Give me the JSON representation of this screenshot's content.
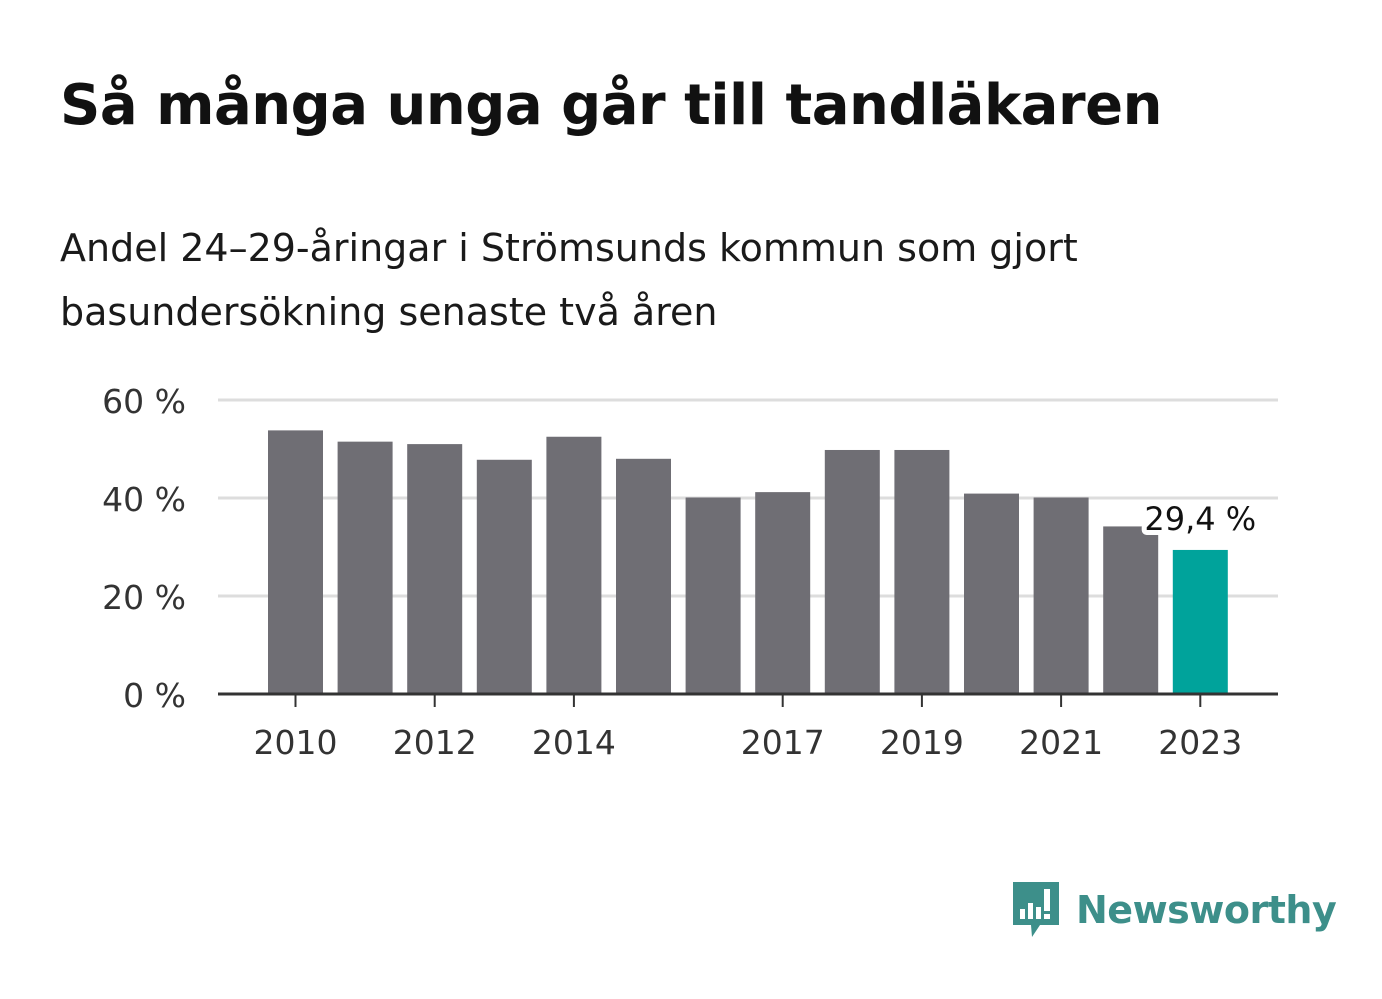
{
  "header": {
    "title": "Så många unga går till tandläkaren",
    "subtitle": "Andel 24–29-åringar i Strömsunds kommun som gjort basundersökning senaste två åren"
  },
  "colors": {
    "bar": "#6f6e74",
    "highlight": "#00a39b",
    "grid": "#dddddd",
    "axis": "#333333",
    "brand": "#3d8f8a"
  },
  "chart_data": {
    "type": "bar",
    "categories": [
      "2010",
      "2011",
      "2012",
      "2013",
      "2014",
      "2015",
      "2016",
      "2017",
      "2018",
      "2019",
      "2020",
      "2021",
      "2022",
      "2023"
    ],
    "values": [
      53.8,
      51.5,
      51.0,
      47.8,
      52.5,
      48.0,
      40.1,
      41.2,
      49.8,
      49.8,
      40.9,
      40.1,
      34.2,
      29.4
    ],
    "highlight_index": 13,
    "data_labels": [
      {
        "index": 13,
        "text": "29,4 %"
      }
    ],
    "x_tick_labels": [
      "2010",
      "2012",
      "2014",
      "2017",
      "2019",
      "2021",
      "2023"
    ],
    "y_ticks": [
      {
        "value": 0,
        "label": "0 %"
      },
      {
        "value": 20,
        "label": "20 %"
      },
      {
        "value": 40,
        "label": "40 %"
      },
      {
        "value": 60,
        "label": "60 %"
      }
    ],
    "ylim": [
      0,
      60
    ],
    "grid": true,
    "legend": "none",
    "xlabel": "",
    "ylabel": ""
  },
  "logo": {
    "icon": "bar-chart-speech-bubble-icon",
    "text": "Newsworthy"
  }
}
